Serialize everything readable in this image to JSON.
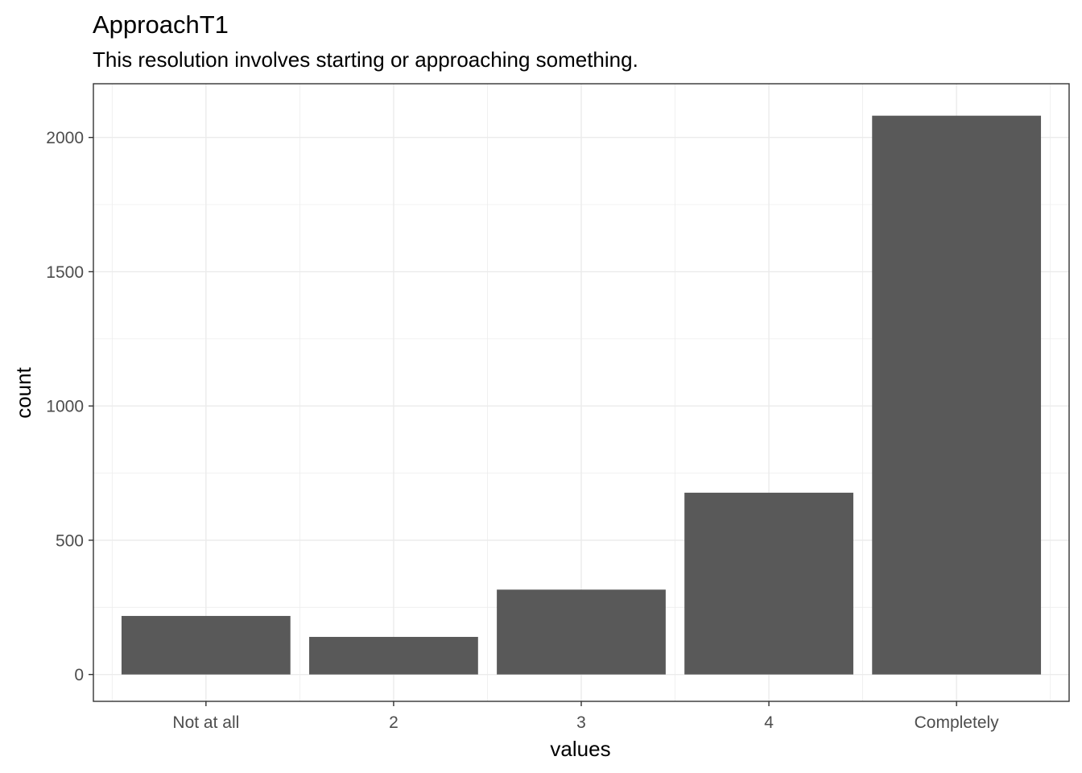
{
  "chart_data": {
    "type": "bar",
    "title": "ApproachT1",
    "subtitle": "This resolution involves starting or approaching something.",
    "xlabel": "values",
    "ylabel": "count",
    "categories": [
      "Not at all",
      "2",
      "3",
      "4",
      "Completely"
    ],
    "values": [
      218,
      140,
      316,
      677,
      2081
    ],
    "ylim": [
      -100,
      2200
    ],
    "yticks": [
      0,
      500,
      1000,
      1500,
      2000
    ],
    "grid": true,
    "bar_color": "#595959",
    "grid_color": "#ebebeb",
    "panel_border_color": "#333333"
  }
}
